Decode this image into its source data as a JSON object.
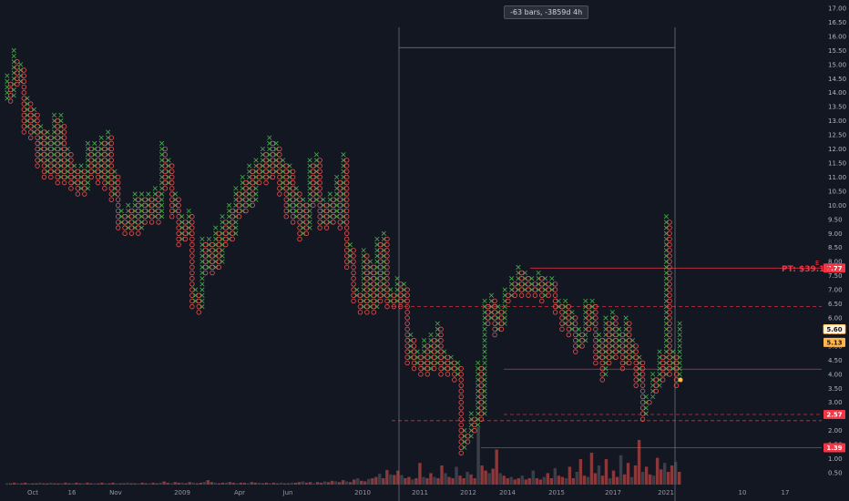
{
  "measure_label": "-63 bars, -3859d 4h",
  "price_target_label": "PT: $39.19",
  "e_marker": "E",
  "colors": {
    "background": "#131722",
    "up": "#26a69a",
    "x_color": "#4caf50",
    "down": "#ef5350",
    "grid": "#1e222d",
    "line_red": "#f23645",
    "orange": "#ffb74d"
  },
  "chart_data": {
    "type": "point-and-figure",
    "y_axis": {
      "ticks": [
        0.5,
        1.0,
        1.5,
        2.0,
        2.5,
        3.0,
        3.5,
        4.0,
        4.5,
        5.0,
        5.5,
        6.0,
        6.5,
        7.0,
        7.5,
        8.0,
        8.5,
        9.0,
        9.5,
        10.0,
        10.5,
        11.0,
        11.5,
        12.0,
        12.5,
        13.0,
        13.5,
        14.0,
        14.5,
        15.0,
        15.5,
        16.0,
        16.5,
        17.0
      ],
      "tick_labels": [
        "0.50",
        "1.00",
        "1.50",
        "2.00",
        "2.50",
        "3.00",
        "3.50",
        "4.00",
        "4.50",
        "5.00",
        "5.50",
        "6.00",
        "6.50",
        "7.00",
        "7.50",
        "8.00",
        "8.50",
        "9.00",
        "9.50",
        "10.00",
        "10.50",
        "11.00",
        "11.50",
        "12.00",
        "12.50",
        "13.00",
        "13.50",
        "14.00",
        "14.50",
        "15.00",
        "15.50",
        "16.00",
        "16.50",
        "17.00"
      ],
      "range": [
        0.0,
        17.1
      ]
    },
    "x_axis": {
      "labels": [
        "Oct",
        "16",
        "Nov",
        "2009",
        "Apr",
        "Jun",
        "2010",
        "2011",
        "2012",
        "2014",
        "2015",
        "2017",
        "2021",
        "10",
        "17"
      ]
    },
    "price_tags": [
      {
        "value": 7.77,
        "label": "7.77",
        "style": "red"
      },
      {
        "value": 5.6,
        "label": "5.60",
        "style": "orange-outline"
      },
      {
        "value": 5.13,
        "label": "5.13",
        "style": "orange"
      },
      {
        "value": 2.57,
        "label": "2.57",
        "style": "red"
      },
      {
        "value": 1.39,
        "label": "1.39",
        "style": "red"
      }
    ],
    "horizontal_levels": [
      {
        "value": 7.77,
        "style": "solid"
      },
      {
        "value": 6.4,
        "style": "dashed"
      },
      {
        "value": 4.18,
        "style": "solid"
      },
      {
        "value": 2.57,
        "style": "dashed"
      },
      {
        "value": 2.35,
        "style": "dashed"
      },
      {
        "value": 1.39,
        "style": "solid"
      }
    ],
    "measure_box": {
      "from_price": 15.6,
      "to_price": 4.0
    },
    "current_price": 3.8,
    "columns": [
      {
        "t": "X",
        "lo": 13.8,
        "hi": 14.6
      },
      {
        "t": "O",
        "lo": 13.7,
        "hi": 14.4
      },
      {
        "t": "X",
        "lo": 13.9,
        "hi": 15.6
      },
      {
        "t": "O",
        "lo": 14.3,
        "hi": 15.2
      },
      {
        "t": "X",
        "lo": 14.4,
        "hi": 15.0
      },
      {
        "t": "O",
        "lo": 12.6,
        "hi": 14.8
      },
      {
        "t": "X",
        "lo": 12.8,
        "hi": 13.8
      },
      {
        "t": "O",
        "lo": 12.4,
        "hi": 13.6
      },
      {
        "t": "X",
        "lo": 12.6,
        "hi": 13.4
      },
      {
        "t": "O",
        "lo": 11.4,
        "hi": 13.2
      },
      {
        "t": "X",
        "lo": 11.6,
        "hi": 12.8
      },
      {
        "t": "O",
        "lo": 11.0,
        "hi": 12.6
      },
      {
        "t": "X",
        "lo": 11.2,
        "hi": 12.6
      },
      {
        "t": "O",
        "lo": 11.0,
        "hi": 12.4
      },
      {
        "t": "X",
        "lo": 11.2,
        "hi": 13.2
      },
      {
        "t": "O",
        "lo": 10.8,
        "hi": 13.0
      },
      {
        "t": "X",
        "lo": 11.0,
        "hi": 13.2
      },
      {
        "t": "O",
        "lo": 10.8,
        "hi": 12.8
      },
      {
        "t": "X",
        "lo": 11.0,
        "hi": 12.0
      },
      {
        "t": "O",
        "lo": 10.6,
        "hi": 11.8
      },
      {
        "t": "X",
        "lo": 10.8,
        "hi": 11.4
      },
      {
        "t": "O",
        "lo": 10.4,
        "hi": 11.2
      },
      {
        "t": "X",
        "lo": 10.6,
        "hi": 11.4
      },
      {
        "t": "O",
        "lo": 10.4,
        "hi": 11.2
      },
      {
        "t": "X",
        "lo": 10.6,
        "hi": 12.2
      },
      {
        "t": "O",
        "lo": 11.0,
        "hi": 12.0
      },
      {
        "t": "X",
        "lo": 11.2,
        "hi": 12.2
      },
      {
        "t": "O",
        "lo": 10.8,
        "hi": 12.0
      },
      {
        "t": "X",
        "lo": 11.0,
        "hi": 12.4
      },
      {
        "t": "O",
        "lo": 10.6,
        "hi": 12.2
      },
      {
        "t": "X",
        "lo": 10.8,
        "hi": 12.6
      },
      {
        "t": "O",
        "lo": 10.2,
        "hi": 12.4
      },
      {
        "t": "X",
        "lo": 10.4,
        "hi": 11.2
      },
      {
        "t": "O",
        "lo": 9.2,
        "hi": 11.0
      },
      {
        "t": "X",
        "lo": 9.4,
        "hi": 9.8
      },
      {
        "t": "O",
        "lo": 9.0,
        "hi": 9.6
      },
      {
        "t": "X",
        "lo": 9.2,
        "hi": 10.0
      },
      {
        "t": "O",
        "lo": 9.0,
        "hi": 9.8
      },
      {
        "t": "X",
        "lo": 9.2,
        "hi": 10.4
      },
      {
        "t": "O",
        "lo": 9.0,
        "hi": 10.2
      },
      {
        "t": "X",
        "lo": 9.2,
        "hi": 10.4
      },
      {
        "t": "O",
        "lo": 9.4,
        "hi": 10.2
      },
      {
        "t": "X",
        "lo": 9.6,
        "hi": 10.4
      },
      {
        "t": "O",
        "lo": 9.4,
        "hi": 10.2
      },
      {
        "t": "X",
        "lo": 9.6,
        "hi": 10.6
      },
      {
        "t": "O",
        "lo": 9.4,
        "hi": 10.4
      },
      {
        "t": "X",
        "lo": 9.6,
        "hi": 12.2
      },
      {
        "t": "O",
        "lo": 10.6,
        "hi": 12.0
      },
      {
        "t": "X",
        "lo": 10.8,
        "hi": 11.6
      },
      {
        "t": "O",
        "lo": 9.6,
        "hi": 11.4
      },
      {
        "t": "X",
        "lo": 9.8,
        "hi": 10.4
      },
      {
        "t": "O",
        "lo": 8.6,
        "hi": 10.2
      },
      {
        "t": "X",
        "lo": 8.8,
        "hi": 9.6
      },
      {
        "t": "O",
        "lo": 8.8,
        "hi": 9.4
      },
      {
        "t": "X",
        "lo": 9.0,
        "hi": 9.8
      },
      {
        "t": "O",
        "lo": 6.4,
        "hi": 9.6
      },
      {
        "t": "X",
        "lo": 6.6,
        "hi": 7.0
      },
      {
        "t": "O",
        "lo": 6.2,
        "hi": 6.8
      },
      {
        "t": "X",
        "lo": 6.4,
        "hi": 8.8
      },
      {
        "t": "O",
        "lo": 7.6,
        "hi": 8.6
      },
      {
        "t": "X",
        "lo": 7.8,
        "hi": 8.8
      },
      {
        "t": "O",
        "lo": 7.6,
        "hi": 8.6
      },
      {
        "t": "X",
        "lo": 7.8,
        "hi": 9.2
      },
      {
        "t": "O",
        "lo": 7.8,
        "hi": 9.0
      },
      {
        "t": "X",
        "lo": 8.0,
        "hi": 9.6
      },
      {
        "t": "O",
        "lo": 8.6,
        "hi": 9.4
      },
      {
        "t": "X",
        "lo": 8.8,
        "hi": 10.0
      },
      {
        "t": "O",
        "lo": 8.8,
        "hi": 9.8
      },
      {
        "t": "X",
        "lo": 9.0,
        "hi": 10.6
      },
      {
        "t": "O",
        "lo": 9.6,
        "hi": 10.4
      },
      {
        "t": "X",
        "lo": 9.8,
        "hi": 11.0
      },
      {
        "t": "O",
        "lo": 9.8,
        "hi": 10.8
      },
      {
        "t": "X",
        "lo": 10.0,
        "hi": 11.4
      },
      {
        "t": "O",
        "lo": 10.0,
        "hi": 11.2
      },
      {
        "t": "X",
        "lo": 10.2,
        "hi": 11.6
      },
      {
        "t": "O",
        "lo": 10.8,
        "hi": 11.4
      },
      {
        "t": "X",
        "lo": 11.0,
        "hi": 12.0
      },
      {
        "t": "O",
        "lo": 10.8,
        "hi": 11.8
      },
      {
        "t": "X",
        "lo": 11.0,
        "hi": 12.4
      },
      {
        "t": "O",
        "lo": 11.0,
        "hi": 12.2
      },
      {
        "t": "X",
        "lo": 11.2,
        "hi": 12.2
      },
      {
        "t": "O",
        "lo": 10.4,
        "hi": 12.0
      },
      {
        "t": "X",
        "lo": 10.6,
        "hi": 11.6
      },
      {
        "t": "O",
        "lo": 9.6,
        "hi": 11.4
      },
      {
        "t": "X",
        "lo": 9.8,
        "hi": 11.4
      },
      {
        "t": "O",
        "lo": 9.4,
        "hi": 11.2
      },
      {
        "t": "X",
        "lo": 9.6,
        "hi": 10.6
      },
      {
        "t": "O",
        "lo": 8.8,
        "hi": 10.4
      },
      {
        "t": "X",
        "lo": 9.0,
        "hi": 10.2
      },
      {
        "t": "O",
        "lo": 9.0,
        "hi": 10.0
      },
      {
        "t": "X",
        "lo": 9.2,
        "hi": 11.6
      },
      {
        "t": "O",
        "lo": 10.0,
        "hi": 11.4
      },
      {
        "t": "X",
        "lo": 10.2,
        "hi": 11.8
      },
      {
        "t": "O",
        "lo": 9.2,
        "hi": 11.6
      },
      {
        "t": "X",
        "lo": 9.4,
        "hi": 10.2
      },
      {
        "t": "O",
        "lo": 9.2,
        "hi": 10.0
      },
      {
        "t": "X",
        "lo": 9.4,
        "hi": 10.4
      },
      {
        "t": "O",
        "lo": 9.4,
        "hi": 10.2
      },
      {
        "t": "X",
        "lo": 9.6,
        "hi": 11.0
      },
      {
        "t": "O",
        "lo": 9.2,
        "hi": 10.8
      },
      {
        "t": "X",
        "lo": 9.4,
        "hi": 11.8
      },
      {
        "t": "O",
        "lo": 7.8,
        "hi": 11.6
      },
      {
        "t": "X",
        "lo": 8.0,
        "hi": 8.6
      },
      {
        "t": "O",
        "lo": 6.6,
        "hi": 8.4
      },
      {
        "t": "X",
        "lo": 6.8,
        "hi": 7.0
      },
      {
        "t": "O",
        "lo": 6.2,
        "hi": 6.8
      },
      {
        "t": "X",
        "lo": 6.4,
        "hi": 8.4
      },
      {
        "t": "O",
        "lo": 6.2,
        "hi": 8.2
      },
      {
        "t": "X",
        "lo": 6.4,
        "hi": 8.0
      },
      {
        "t": "O",
        "lo": 6.2,
        "hi": 7.8
      },
      {
        "t": "X",
        "lo": 6.4,
        "hi": 8.8
      },
      {
        "t": "O",
        "lo": 6.6,
        "hi": 8.6
      },
      {
        "t": "X",
        "lo": 6.8,
        "hi": 9.0
      },
      {
        "t": "O",
        "lo": 6.4,
        "hi": 8.8
      },
      {
        "t": "X",
        "lo": 6.6,
        "hi": 7.0
      },
      {
        "t": "O",
        "lo": 6.4,
        "hi": 6.8
      },
      {
        "t": "X",
        "lo": 6.6,
        "hi": 7.4
      },
      {
        "t": "O",
        "lo": 6.4,
        "hi": 7.2
      },
      {
        "t": "X",
        "lo": 6.6,
        "hi": 7.2
      },
      {
        "t": "O",
        "lo": 4.4,
        "hi": 7.0
      },
      {
        "t": "X",
        "lo": 4.6,
        "hi": 5.4
      },
      {
        "t": "O",
        "lo": 4.2,
        "hi": 5.2
      },
      {
        "t": "X",
        "lo": 4.4,
        "hi": 4.8
      },
      {
        "t": "O",
        "lo": 4.0,
        "hi": 4.6
      },
      {
        "t": "X",
        "lo": 4.2,
        "hi": 5.2
      },
      {
        "t": "O",
        "lo": 4.0,
        "hi": 5.0
      },
      {
        "t": "X",
        "lo": 4.2,
        "hi": 5.4
      },
      {
        "t": "O",
        "lo": 4.2,
        "hi": 5.2
      },
      {
        "t": "X",
        "lo": 4.4,
        "hi": 5.8
      },
      {
        "t": "O",
        "lo": 4.0,
        "hi": 5.6
      },
      {
        "t": "X",
        "lo": 4.2,
        "hi": 4.8
      },
      {
        "t": "O",
        "lo": 4.0,
        "hi": 4.6
      },
      {
        "t": "X",
        "lo": 4.2,
        "hi": 4.6
      },
      {
        "t": "O",
        "lo": 3.8,
        "hi": 4.4
      },
      {
        "t": "X",
        "lo": 4.0,
        "hi": 4.4
      },
      {
        "t": "O",
        "lo": 1.2,
        "hi": 4.2
      },
      {
        "t": "X",
        "lo": 1.4,
        "hi": 2.0
      },
      {
        "t": "O",
        "lo": 1.6,
        "hi": 1.8
      },
      {
        "t": "X",
        "lo": 1.8,
        "hi": 2.6
      },
      {
        "t": "O",
        "lo": 2.0,
        "hi": 2.4
      },
      {
        "t": "X",
        "lo": 2.2,
        "hi": 4.4
      },
      {
        "t": "O",
        "lo": 2.4,
        "hi": 4.2
      },
      {
        "t": "X",
        "lo": 2.6,
        "hi": 6.6
      },
      {
        "t": "O",
        "lo": 5.8,
        "hi": 6.4
      },
      {
        "t": "X",
        "lo": 6.0,
        "hi": 6.8
      },
      {
        "t": "O",
        "lo": 5.4,
        "hi": 6.6
      },
      {
        "t": "X",
        "lo": 5.6,
        "hi": 6.4
      },
      {
        "t": "O",
        "lo": 5.6,
        "hi": 6.2
      },
      {
        "t": "X",
        "lo": 5.8,
        "hi": 7.0
      },
      {
        "t": "O",
        "lo": 6.6,
        "hi": 6.8
      },
      {
        "t": "X",
        "lo": 6.8,
        "hi": 7.4
      },
      {
        "t": "O",
        "lo": 6.8,
        "hi": 7.2
      },
      {
        "t": "X",
        "lo": 7.0,
        "hi": 7.8
      },
      {
        "t": "O",
        "lo": 6.8,
        "hi": 7.6
      },
      {
        "t": "X",
        "lo": 7.0,
        "hi": 7.6
      },
      {
        "t": "O",
        "lo": 6.8,
        "hi": 7.4
      },
      {
        "t": "X",
        "lo": 7.0,
        "hi": 7.4
      },
      {
        "t": "O",
        "lo": 6.8,
        "hi": 7.2
      },
      {
        "t": "X",
        "lo": 7.0,
        "hi": 7.6
      },
      {
        "t": "O",
        "lo": 6.6,
        "hi": 7.4
      },
      {
        "t": "X",
        "lo": 6.8,
        "hi": 7.4
      },
      {
        "t": "O",
        "lo": 6.8,
        "hi": 7.2
      },
      {
        "t": "X",
        "lo": 7.0,
        "hi": 7.4
      },
      {
        "t": "O",
        "lo": 6.2,
        "hi": 7.2
      },
      {
        "t": "X",
        "lo": 6.4,
        "hi": 6.6
      },
      {
        "t": "O",
        "lo": 5.6,
        "hi": 6.4
      },
      {
        "t": "X",
        "lo": 5.8,
        "hi": 6.6
      },
      {
        "t": "O",
        "lo": 5.4,
        "hi": 6.4
      },
      {
        "t": "X",
        "lo": 5.6,
        "hi": 6.2
      },
      {
        "t": "O",
        "lo": 4.8,
        "hi": 6.0
      },
      {
        "t": "X",
        "lo": 5.0,
        "hi": 5.6
      },
      {
        "t": "O",
        "lo": 5.0,
        "hi": 5.4
      },
      {
        "t": "X",
        "lo": 5.2,
        "hi": 6.6
      },
      {
        "t": "O",
        "lo": 5.6,
        "hi": 6.4
      },
      {
        "t": "X",
        "lo": 5.8,
        "hi": 6.6
      },
      {
        "t": "O",
        "lo": 4.4,
        "hi": 6.4
      },
      {
        "t": "X",
        "lo": 4.6,
        "hi": 5.4
      },
      {
        "t": "O",
        "lo": 3.8,
        "hi": 5.2
      },
      {
        "t": "X",
        "lo": 4.0,
        "hi": 6.0
      },
      {
        "t": "O",
        "lo": 4.4,
        "hi": 5.8
      },
      {
        "t": "X",
        "lo": 4.6,
        "hi": 6.2
      },
      {
        "t": "O",
        "lo": 4.6,
        "hi": 6.0
      },
      {
        "t": "X",
        "lo": 4.8,
        "hi": 5.6
      },
      {
        "t": "O",
        "lo": 4.2,
        "hi": 5.4
      },
      {
        "t": "X",
        "lo": 4.4,
        "hi": 6.0
      },
      {
        "t": "O",
        "lo": 4.4,
        "hi": 5.8
      },
      {
        "t": "X",
        "lo": 4.6,
        "hi": 5.2
      },
      {
        "t": "O",
        "lo": 3.6,
        "hi": 5.0
      },
      {
        "t": "X",
        "lo": 3.8,
        "hi": 4.6
      },
      {
        "t": "O",
        "lo": 2.4,
        "hi": 4.4
      },
      {
        "t": "X",
        "lo": 2.6,
        "hi": 3.2
      },
      {
        "t": "O",
        "lo": 3.0,
        "hi": 3.0
      },
      {
        "t": "X",
        "lo": 3.2,
        "hi": 4.0
      },
      {
        "t": "O",
        "lo": 3.4,
        "hi": 3.8
      },
      {
        "t": "X",
        "lo": 3.6,
        "hi": 4.8
      },
      {
        "t": "O",
        "lo": 3.8,
        "hi": 4.6
      },
      {
        "t": "X",
        "lo": 4.0,
        "hi": 9.6
      },
      {
        "t": "O",
        "lo": 4.0,
        "hi": 9.4
      },
      {
        "t": "X",
        "lo": 4.2,
        "hi": 4.8
      },
      {
        "t": "O",
        "lo": 3.6,
        "hi": 4.6
      },
      {
        "t": "X",
        "lo": 3.8,
        "hi": 5.8
      }
    ],
    "volume": [
      0.02,
      0.02,
      0.03,
      0.02,
      0.02,
      0.03,
      0.02,
      0.02,
      0.02,
      0.03,
      0.02,
      0.02,
      0.03,
      0.02,
      0.02,
      0.02,
      0.03,
      0.02,
      0.02,
      0.03,
      0.02,
      0.02,
      0.03,
      0.02,
      0.02,
      0.02,
      0.03,
      0.02,
      0.02,
      0.03,
      0.02,
      0.02,
      0.02,
      0.03,
      0.02,
      0.02,
      0.02,
      0.03,
      0.02,
      0.02,
      0.03,
      0.02,
      0.03,
      0.05,
      0.03,
      0.02,
      0.04,
      0.03,
      0.03,
      0.02,
      0.04,
      0.03,
      0.02,
      0.03,
      0.04,
      0.07,
      0.04,
      0.03,
      0.02,
      0.03,
      0.03,
      0.04,
      0.03,
      0.02,
      0.03,
      0.03,
      0.02,
      0.04,
      0.03,
      0.03,
      0.02,
      0.03,
      0.02,
      0.03,
      0.02,
      0.03,
      0.02,
      0.02,
      0.03,
      0.03,
      0.04,
      0.05,
      0.03,
      0.04,
      0.02,
      0.04,
      0.03,
      0.05,
      0.04,
      0.06,
      0.05,
      0.04,
      0.07,
      0.05,
      0.04,
      0.08,
      0.1,
      0.06,
      0.05,
      0.09,
      0.1,
      0.12,
      0.17,
      0.1,
      0.23,
      0.16,
      0.15,
      0.22,
      0.15,
      0.1,
      0.12,
      0.08,
      0.1,
      0.34,
      0.12,
      0.1,
      0.18,
      0.12,
      0.1,
      0.3,
      0.18,
      0.12,
      0.1,
      0.28,
      0.14,
      0.1,
      0.2,
      0.16,
      0.1,
      0.9,
      0.3,
      0.22,
      0.18,
      0.25,
      0.55,
      0.18,
      0.14,
      0.1,
      0.12,
      0.08,
      0.1,
      0.14,
      0.08,
      0.1,
      0.22,
      0.1,
      0.08,
      0.12,
      0.18,
      0.1,
      0.26,
      0.14,
      0.12,
      0.1,
      0.28,
      0.1,
      0.2,
      0.4,
      0.14,
      0.12,
      0.5,
      0.18,
      0.3,
      0.14,
      0.4,
      0.1,
      0.22,
      0.12,
      0.46,
      0.16,
      0.34,
      0.12,
      0.3,
      0.7,
      0.2,
      0.28,
      0.16,
      0.14,
      0.42,
      0.24,
      0.34,
      0.2,
      0.3,
      0.36,
      0.2
    ]
  }
}
